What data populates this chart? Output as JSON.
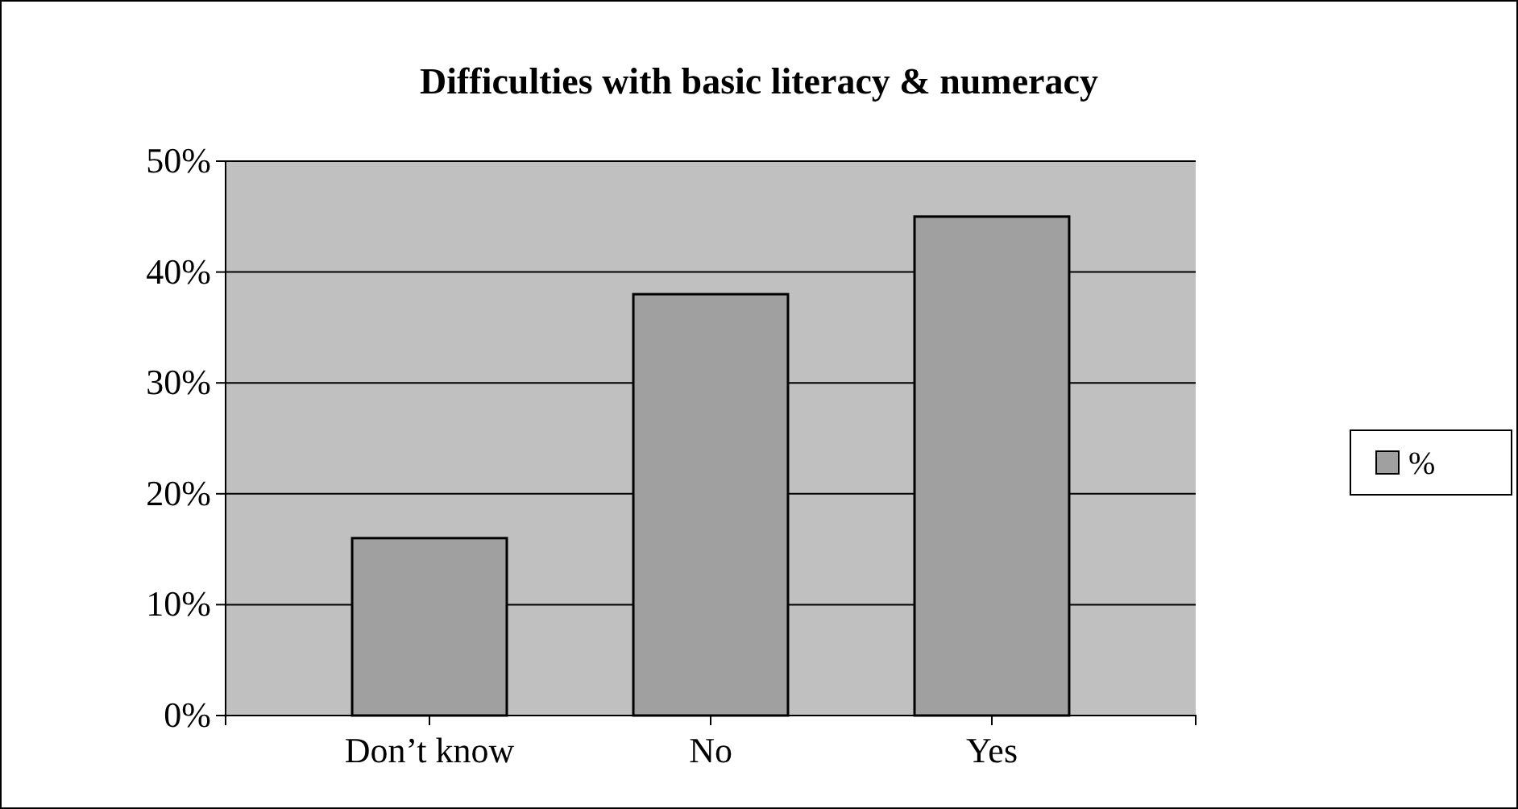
{
  "chart_data": {
    "type": "bar",
    "title": "Difficulties with basic literacy & numeracy",
    "categories": [
      "Don’t know",
      "No",
      "Yes"
    ],
    "series": [
      {
        "name": "%",
        "color": "#a0a0a0",
        "values": [
          16,
          38,
          45
        ]
      }
    ],
    "ylim": [
      0,
      50
    ],
    "yticks": [
      {
        "value": 0,
        "label": "0%"
      },
      {
        "value": 10,
        "label": "10%"
      },
      {
        "value": 20,
        "label": "20%"
      },
      {
        "value": 30,
        "label": "30%"
      },
      {
        "value": 40,
        "label": "40%"
      },
      {
        "value": 50,
        "label": "50%"
      }
    ],
    "grid": "y",
    "legend": "right"
  }
}
